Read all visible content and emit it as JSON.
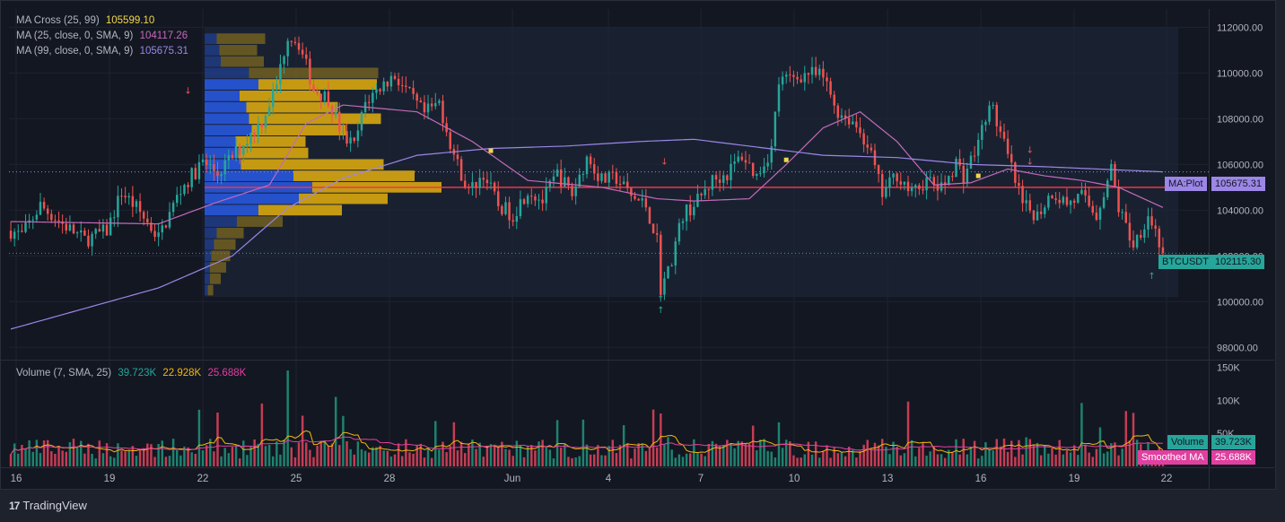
{
  "legend": {
    "ma_cross": {
      "label": "MA Cross (25, 99)",
      "value": "105599.10",
      "color": "#f0d84a"
    },
    "ma25": {
      "label": "MA (25, close, 0, SMA, 9)",
      "value": "104117.26",
      "color": "#c46ab9"
    },
    "ma99": {
      "label": "MA (99, close, 0, SMA, 9)",
      "value": "105675.31",
      "color": "#9c86e6"
    },
    "volume": {
      "label": "Volume (7, SMA, 25)",
      "value1": "39.723K",
      "value2": "22.928K",
      "value3": "25.688K"
    }
  },
  "price_labels": {
    "ma_plot": {
      "name": "MA:Plot",
      "value": "105675.31"
    },
    "btcusdt": {
      "name": "BTCUSDT",
      "value": "102115.30"
    },
    "volume": {
      "name": "Volume",
      "value": "39.723K"
    },
    "smoothed": {
      "name": "Smoothed MA",
      "value": "25.688K"
    }
  },
  "price_axis": [
    "112000.00",
    "110000.00",
    "108000.00",
    "106000.00",
    "104000.00",
    "102000.00",
    "100000.00",
    "98000.00"
  ],
  "volume_axis": [
    "150K",
    "100K",
    "50K"
  ],
  "time_axis": [
    "16",
    "19",
    "22",
    "25",
    "28",
    "Jun",
    "4",
    "7",
    "10",
    "13",
    "16",
    "19",
    "22"
  ],
  "footer": {
    "brand": "TradingView"
  },
  "colors": {
    "up": "#26a69a",
    "down": "#ef5350",
    "ma25": "#c46ab9",
    "ma99": "#9c86e6",
    "cross": "#f0d84a",
    "poc": "#f23645",
    "vp_up": "#2962ff",
    "vp_down": "#f0b90b"
  },
  "chart_data": {
    "type": "candlestick",
    "symbol": "BTCUSDT",
    "interval_hours": 4,
    "start": "May 16",
    "y_range": [
      97500,
      112800
    ],
    "volume_range": [
      0,
      160000
    ],
    "last_price": 102115.3,
    "poc_price": 105000,
    "candles_summary": "approx 4h OHLC series",
    "waypoints": [
      [
        0,
        103100
      ],
      [
        3,
        102900
      ],
      [
        8,
        104200
      ],
      [
        14,
        103400
      ],
      [
        20,
        102700
      ],
      [
        26,
        103100
      ],
      [
        30,
        104800
      ],
      [
        34,
        104100
      ],
      [
        40,
        102800
      ],
      [
        46,
        104900
      ],
      [
        52,
        106100
      ],
      [
        56,
        105600
      ],
      [
        62,
        106700
      ],
      [
        68,
        107900
      ],
      [
        72,
        109500
      ],
      [
        75,
        111700
      ],
      [
        78,
        111300
      ],
      [
        82,
        109300
      ],
      [
        86,
        108900
      ],
      [
        90,
        107200
      ],
      [
        93,
        106800
      ],
      [
        96,
        108700
      ],
      [
        100,
        109400
      ],
      [
        104,
        109900
      ],
      [
        108,
        109000
      ],
      [
        112,
        108200
      ],
      [
        116,
        108700
      ],
      [
        120,
        106400
      ],
      [
        124,
        104800
      ],
      [
        128,
        105600
      ],
      [
        132,
        104200
      ],
      [
        136,
        103800
      ],
      [
        140,
        104900
      ],
      [
        144,
        104400
      ],
      [
        148,
        105600
      ],
      [
        152,
        104700
      ],
      [
        156,
        106300
      ],
      [
        160,
        105300
      ],
      [
        164,
        105400
      ],
      [
        168,
        104600
      ],
      [
        172,
        104200
      ],
      [
        175,
        102700
      ],
      [
        176,
        100600
      ],
      [
        178,
        101300
      ],
      [
        182,
        103800
      ],
      [
        186,
        104400
      ],
      [
        190,
        105300
      ],
      [
        194,
        105600
      ],
      [
        198,
        106400
      ],
      [
        202,
        105500
      ],
      [
        206,
        106700
      ],
      [
        208,
        109600
      ],
      [
        212,
        109800
      ],
      [
        216,
        110000
      ],
      [
        220,
        109800
      ],
      [
        224,
        108300
      ],
      [
        228,
        107900
      ],
      [
        232,
        106900
      ],
      [
        236,
        104700
      ],
      [
        240,
        105600
      ],
      [
        244,
        104700
      ],
      [
        248,
        105300
      ],
      [
        252,
        104900
      ],
      [
        256,
        106100
      ],
      [
        258,
        105500
      ],
      [
        262,
        106900
      ],
      [
        264,
        108200
      ],
      [
        266,
        108400
      ],
      [
        270,
        106300
      ],
      [
        274,
        104200
      ],
      [
        278,
        103800
      ],
      [
        282,
        104800
      ],
      [
        286,
        104300
      ],
      [
        290,
        104600
      ],
      [
        294,
        103800
      ],
      [
        298,
        105800
      ],
      [
        300,
        104100
      ],
      [
        304,
        102500
      ],
      [
        308,
        103800
      ],
      [
        310,
        103100
      ],
      [
        312,
        102100
      ]
    ],
    "ma25_waypoints": [
      [
        0,
        103500
      ],
      [
        40,
        103400
      ],
      [
        55,
        104300
      ],
      [
        70,
        105100
      ],
      [
        80,
        107800
      ],
      [
        90,
        108600
      ],
      [
        110,
        108300
      ],
      [
        125,
        107000
      ],
      [
        140,
        105300
      ],
      [
        160,
        105000
      ],
      [
        175,
        104500
      ],
      [
        185,
        104400
      ],
      [
        200,
        104500
      ],
      [
        210,
        106000
      ],
      [
        220,
        107600
      ],
      [
        230,
        108300
      ],
      [
        240,
        107000
      ],
      [
        250,
        105100
      ],
      [
        260,
        105200
      ],
      [
        270,
        105800
      ],
      [
        280,
        105500
      ],
      [
        290,
        105300
      ],
      [
        300,
        105000
      ],
      [
        312,
        104117
      ]
    ],
    "ma99_waypoints": [
      [
        0,
        98800
      ],
      [
        20,
        99700
      ],
      [
        40,
        100600
      ],
      [
        60,
        102000
      ],
      [
        75,
        104100
      ],
      [
        90,
        105400
      ],
      [
        110,
        106400
      ],
      [
        130,
        106700
      ],
      [
        150,
        106800
      ],
      [
        170,
        107000
      ],
      [
        185,
        107100
      ],
      [
        200,
        106800
      ],
      [
        220,
        106400
      ],
      [
        240,
        106300
      ],
      [
        260,
        106000
      ],
      [
        280,
        105900
      ],
      [
        312,
        105675
      ]
    ],
    "cross_points": [
      [
        130,
        106600
      ],
      [
        210,
        106200
      ],
      [
        262,
        105500
      ]
    ],
    "volume_profile": [
      {
        "price": 111500,
        "up": 4500,
        "down": 18000
      },
      {
        "price": 111000,
        "up": 5500,
        "down": 14000
      },
      {
        "price": 110500,
        "up": 6000,
        "down": 16000
      },
      {
        "price": 110000,
        "up": 16500,
        "down": 48000
      },
      {
        "price": 109500,
        "up": 20000,
        "down": 44000
      },
      {
        "price": 109000,
        "up": 13000,
        "down": 30000
      },
      {
        "price": 108500,
        "up": 15500,
        "down": 34000
      },
      {
        "price": 108000,
        "up": 16500,
        "down": 49000
      },
      {
        "price": 107500,
        "up": 17500,
        "down": 35000
      },
      {
        "price": 107000,
        "up": 11500,
        "down": 26000
      },
      {
        "price": 106500,
        "up": 12500,
        "down": 26000
      },
      {
        "price": 106000,
        "up": 13500,
        "down": 53000
      },
      {
        "price": 105500,
        "up": 33000,
        "down": 45000
      },
      {
        "price": 105000,
        "up": 40000,
        "down": 48000
      },
      {
        "price": 104500,
        "up": 35000,
        "down": 33000
      },
      {
        "price": 104000,
        "up": 20000,
        "down": 31000
      },
      {
        "price": 103500,
        "up": 12000,
        "down": 17000
      },
      {
        "price": 103000,
        "up": 4500,
        "down": 10000
      },
      {
        "price": 102500,
        "up": 3500,
        "down": 8000
      },
      {
        "price": 102000,
        "up": 2500,
        "down": 7000
      },
      {
        "price": 101500,
        "up": 2000,
        "down": 6000
      },
      {
        "price": 101000,
        "up": 2000,
        "down": 4000
      },
      {
        "price": 100500,
        "up": 1200,
        "down": 2000
      }
    ],
    "arrows": [
      {
        "bar": 176,
        "dir": "up",
        "price": 100000
      },
      {
        "bar": 176,
        "dir": "up",
        "price": 99500
      },
      {
        "bar": 177,
        "dir": "down",
        "price": 106000
      },
      {
        "bar": 48,
        "dir": "down",
        "price": 109100
      },
      {
        "bar": 276,
        "dir": "down",
        "price": 106500
      },
      {
        "bar": 276,
        "dir": "down",
        "price": 106000
      },
      {
        "bar": 309,
        "dir": "up",
        "price": 101000
      }
    ]
  }
}
